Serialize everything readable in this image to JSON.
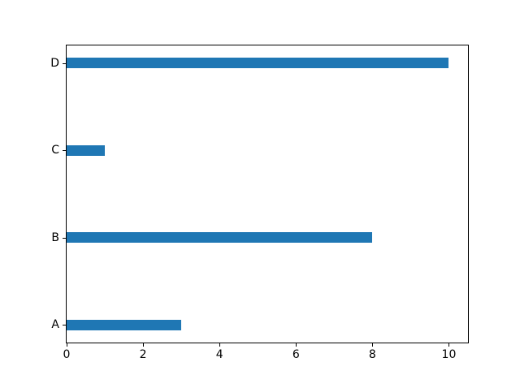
{
  "chart_data": {
    "type": "bar",
    "orientation": "horizontal",
    "title": "",
    "xlabel": "",
    "ylabel": "",
    "categories": [
      "A",
      "B",
      "C",
      "D"
    ],
    "values": [
      3,
      8,
      1,
      10
    ],
    "xticks": [
      0,
      2,
      4,
      6,
      8,
      10
    ],
    "xlim": [
      0,
      10.5
    ],
    "ylim": [
      -0.2,
      3.2
    ],
    "grid": false,
    "legend": null,
    "bar_color": "#1f77b4",
    "axis_color": "#000000",
    "background_color": "#ffffff"
  }
}
